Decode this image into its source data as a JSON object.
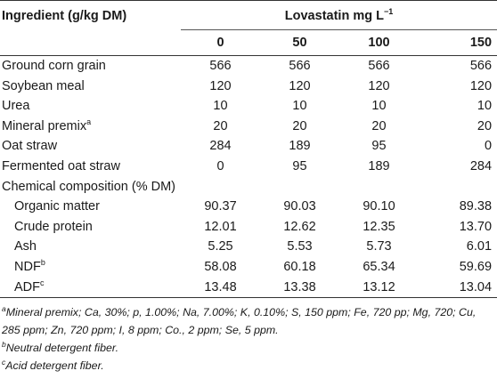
{
  "table": {
    "header": {
      "ingredient_label": "Ingredient (g/kg DM)",
      "lovastatin_label": "Lovastatin mg L",
      "lovastatin_sup": "−1",
      "doses": [
        "0",
        "50",
        "100",
        "150"
      ]
    },
    "rows": [
      {
        "label": "Ground corn grain",
        "sup": "",
        "values": [
          "566",
          "566",
          "566",
          "566"
        ]
      },
      {
        "label": "Soybean meal",
        "sup": "",
        "values": [
          "120",
          "120",
          "120",
          "120"
        ]
      },
      {
        "label": "Urea",
        "sup": "",
        "values": [
          "10",
          "10",
          "10",
          "10"
        ]
      },
      {
        "label": "Mineral premix",
        "sup": "a",
        "values": [
          "20",
          "20",
          "20",
          "20"
        ]
      },
      {
        "label": "Oat straw",
        "sup": "",
        "values": [
          "284",
          "189",
          "95",
          "0"
        ]
      },
      {
        "label": "Fermented oat straw",
        "sup": "",
        "values": [
          "0",
          "95",
          "189",
          "284"
        ]
      }
    ],
    "section_label": "Chemical composition (% DM)",
    "composition_rows": [
      {
        "label": "Organic matter",
        "sup": "",
        "values": [
          "90.37",
          "90.03",
          "90.10",
          "89.38"
        ]
      },
      {
        "label": "Crude protein",
        "sup": "",
        "values": [
          "12.01",
          "12.62",
          "12.35",
          "13.70"
        ]
      },
      {
        "label": "Ash",
        "sup": "",
        "values": [
          "5.25",
          "5.53",
          "5.73",
          "6.01"
        ]
      },
      {
        "label": "NDF",
        "sup": "b",
        "values": [
          "58.08",
          "60.18",
          "65.34",
          "59.69"
        ]
      },
      {
        "label": "ADF",
        "sup": "c",
        "values": [
          "13.48",
          "13.38",
          "13.12",
          "13.04"
        ]
      }
    ]
  },
  "footnotes": [
    {
      "marker": "a",
      "text": "Mineral premix; Ca, 30%; p, 1.00%; Na, 7.00%; K, 0.10%; S, 150 ppm; Fe, 720 pp; Mg, 720; Cu, 285 ppm; Zn, 720 ppm; I, 8 ppm; Co., 2 ppm; Se, 5 ppm."
    },
    {
      "marker": "b",
      "text": "Neutral detergent fiber."
    },
    {
      "marker": "c",
      "text": "Acid detergent fiber."
    }
  ]
}
